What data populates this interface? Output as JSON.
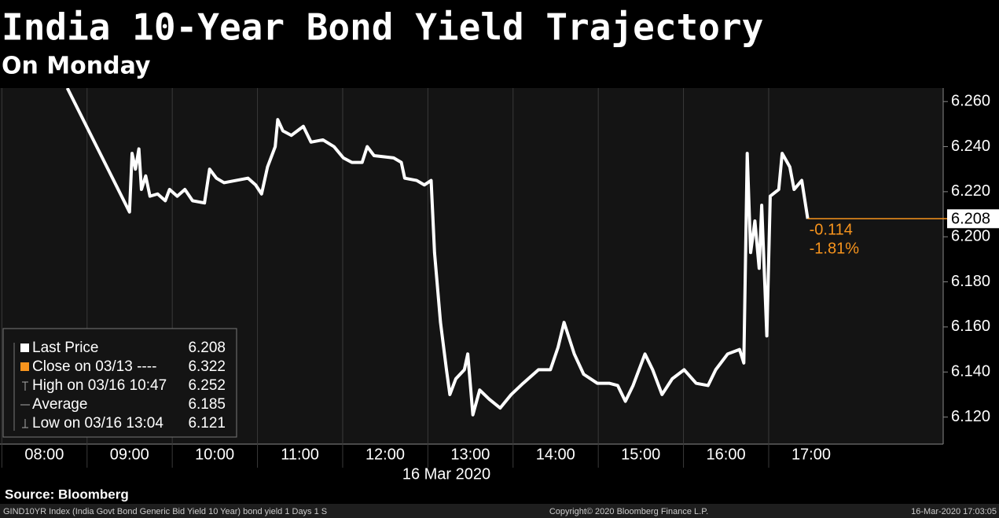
{
  "chart_data": {
    "type": "line",
    "title": "India 10-Year Bond Yield Trajectory",
    "subtitle": "On Monday",
    "x_label": "16 Mar 2020",
    "x": [
      8.27,
      9.0,
      9.03,
      9.07,
      9.11,
      9.14,
      9.19,
      9.24,
      9.33,
      9.42,
      9.47,
      9.56,
      9.65,
      9.74,
      9.88,
      9.94,
      10.02,
      10.11,
      10.25,
      10.39,
      10.48,
      10.55,
      10.62,
      10.71,
      10.74,
      10.8,
      10.9,
      11.04,
      11.13,
      11.27,
      11.4,
      11.51,
      11.61,
      11.73,
      11.79,
      11.87,
      12.1,
      12.19,
      12.23,
      12.37,
      12.46,
      12.54,
      12.58,
      12.65,
      12.72,
      12.76,
      12.83,
      12.93,
      12.97,
      13.03,
      13.11,
      13.22,
      13.35,
      13.48,
      13.62,
      13.8,
      13.94,
      14.03,
      14.1,
      14.22,
      14.33,
      14.49,
      14.63,
      14.73,
      14.82,
      14.91,
      15.05,
      15.14,
      15.25,
      15.37,
      15.51,
      15.65,
      15.79,
      15.88,
      16.02,
      16.16,
      16.21,
      16.25,
      16.29,
      16.34,
      16.39,
      16.42,
      16.48,
      16.52,
      16.62,
      16.66,
      16.75,
      16.8,
      16.89,
      16.96
    ],
    "series": [
      {
        "name": "Last Price",
        "color": "#ffffff",
        "values": [
          6.266,
          6.211,
          6.237,
          6.23,
          6.239,
          6.221,
          6.227,
          6.218,
          6.219,
          6.216,
          6.221,
          6.218,
          6.221,
          6.216,
          6.215,
          6.23,
          6.226,
          6.224,
          6.225,
          6.226,
          6.223,
          6.219,
          6.231,
          6.24,
          6.252,
          6.247,
          6.245,
          6.249,
          6.242,
          6.243,
          6.24,
          6.235,
          6.233,
          6.233,
          6.24,
          6.236,
          6.235,
          6.233,
          6.226,
          6.225,
          6.223,
          6.225,
          6.193,
          6.162,
          6.141,
          6.13,
          6.137,
          6.141,
          6.148,
          6.121,
          6.132,
          6.128,
          6.124,
          6.13,
          6.135,
          6.141,
          6.141,
          6.151,
          6.162,
          6.148,
          6.139,
          6.135,
          6.135,
          6.134,
          6.127,
          6.134,
          6.148,
          6.141,
          6.13,
          6.137,
          6.141,
          6.135,
          6.134,
          6.141,
          6.148,
          6.15,
          6.144,
          6.237,
          6.193,
          6.207,
          6.186,
          6.214,
          6.156,
          6.218,
          6.221,
          6.237,
          6.231,
          6.221,
          6.225,
          6.208
        ]
      }
    ],
    "xlim": [
      7.48,
      18.55
    ],
    "ylim": [
      6.108,
      6.266
    ],
    "xticks": [
      {
        "value": 8,
        "label": "08:00"
      },
      {
        "value": 9,
        "label": "09:00"
      },
      {
        "value": 10,
        "label": "10:00"
      },
      {
        "value": 11,
        "label": "11:00"
      },
      {
        "value": 12,
        "label": "12:00"
      },
      {
        "value": 13,
        "label": "13:00"
      },
      {
        "value": 14,
        "label": "14:00"
      },
      {
        "value": 15,
        "label": "15:00"
      },
      {
        "value": 16,
        "label": "16:00"
      },
      {
        "value": 17,
        "label": "17:00"
      }
    ],
    "yticks": [
      {
        "value": 6.12,
        "label": "6.120"
      },
      {
        "value": 6.14,
        "label": "6.140"
      },
      {
        "value": 6.16,
        "label": "6.160"
      },
      {
        "value": 6.18,
        "label": "6.180"
      },
      {
        "value": 6.2,
        "label": "6.200"
      },
      {
        "value": 6.22,
        "label": "6.220"
      },
      {
        "value": 6.24,
        "label": "6.240"
      },
      {
        "value": 6.26,
        "label": "6.260"
      }
    ],
    "grid": true,
    "last_value": 6.208,
    "last_color": "#f7941d",
    "change": -0.114,
    "change_pct": "-1.81%",
    "stats": [
      {
        "label": "Close on 03/13 ----",
        "value": 6.322
      },
      {
        "label": "High on 03/16 10:47",
        "value": 6.252
      },
      {
        "label": "Average",
        "value": 6.185
      },
      {
        "label": "Low on 03/16 13:04",
        "value": 6.121
      }
    ],
    "source": "Source: Bloomberg",
    "footer_left": "GIND10YR Index (India Govt Bond Generic Bid Yield 10 Year) bond yield 1 Days 1 S",
    "footer_center": "Copyright© 2020 Bloomberg Finance L.P.",
    "footer_right": "16-Mar-2020 17:03:05"
  }
}
